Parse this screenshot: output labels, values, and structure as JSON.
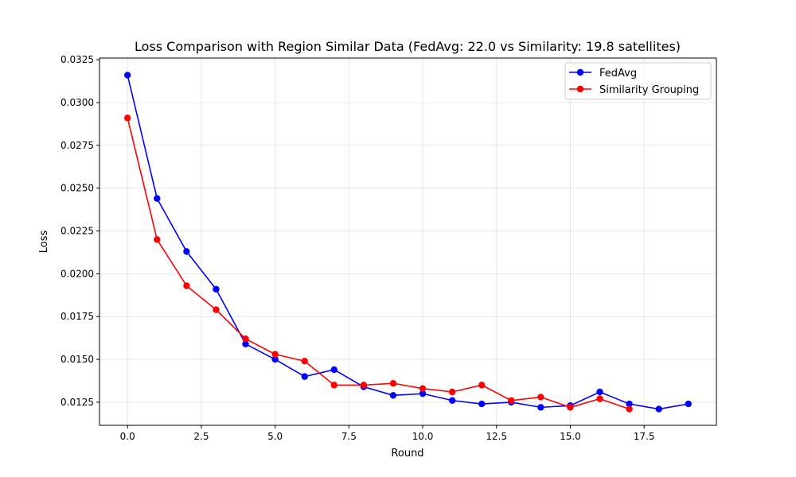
{
  "chart_data": {
    "type": "line",
    "title": "Loss Comparison with Region Similar Data (FedAvg: 22.0 vs Similarity: 19.8 satellites)",
    "xlabel": "Round",
    "ylabel": "Loss",
    "xlim": [
      -0.95,
      19.95
    ],
    "ylim": [
      0.01115,
      0.0326
    ],
    "xticks": [
      0.0,
      2.5,
      5.0,
      7.5,
      10.0,
      12.5,
      15.0,
      17.5
    ],
    "xtick_labels": [
      "0.0",
      "2.5",
      "5.0",
      "7.5",
      "10.0",
      "12.5",
      "15.0",
      "17.5"
    ],
    "yticks": [
      0.0125,
      0.015,
      0.0175,
      0.02,
      0.0225,
      0.025,
      0.0275,
      0.03,
      0.0325
    ],
    "ytick_labels": [
      "0.0125",
      "0.0150",
      "0.0175",
      "0.0200",
      "0.0225",
      "0.0250",
      "0.0275",
      "0.0300",
      "0.0325"
    ],
    "grid": true,
    "legend_position": "top-right",
    "series": [
      {
        "name": "FedAvg",
        "color": "#0000ff",
        "x": [
          0,
          1,
          2,
          3,
          4,
          5,
          6,
          7,
          8,
          9,
          10,
          11,
          12,
          13,
          14,
          15,
          16,
          17,
          18,
          19
        ],
        "y": [
          0.0316,
          0.0244,
          0.0213,
          0.0191,
          0.0159,
          0.015,
          0.014,
          0.0144,
          0.0134,
          0.0129,
          0.013,
          0.0126,
          0.0124,
          0.0125,
          0.0122,
          0.0123,
          0.0131,
          0.0124,
          0.0121,
          0.0124
        ]
      },
      {
        "name": "Similarity Grouping",
        "color": "#ff0000",
        "x": [
          0,
          1,
          2,
          3,
          4,
          5,
          6,
          7,
          8,
          9,
          10,
          11,
          12,
          13,
          14,
          15,
          16,
          17
        ],
        "y": [
          0.0291,
          0.022,
          0.0193,
          0.0179,
          0.0162,
          0.0153,
          0.0149,
          0.0135,
          0.0135,
          0.0136,
          0.0133,
          0.0131,
          0.0135,
          0.0126,
          0.0128,
          0.0122,
          0.0127,
          0.0121
        ]
      }
    ]
  }
}
